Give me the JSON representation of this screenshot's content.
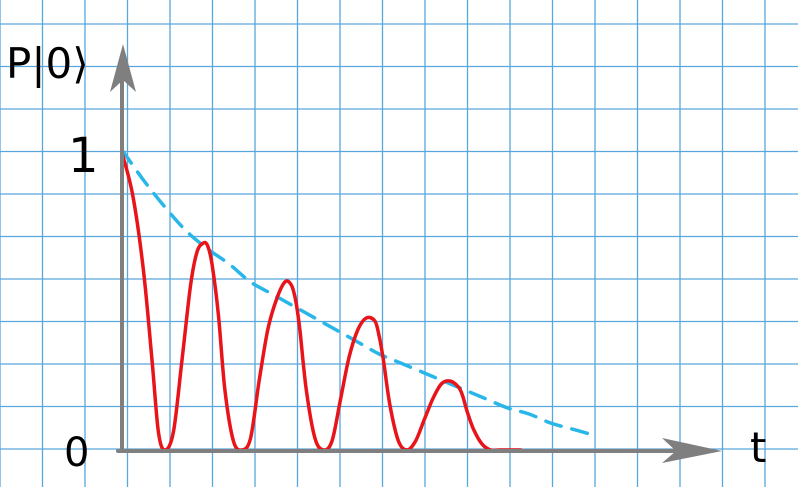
{
  "colors": {
    "background": "#ffffff",
    "grid": "#59a6dd",
    "axis": "#7f7f7f",
    "oscillation": "#e8141a",
    "envelope": "#29b6e8",
    "text": "#000000"
  },
  "chart_data": {
    "type": "line",
    "title": "",
    "ylabel": "P|0⟩",
    "xlabel": "t",
    "yticks": [
      {
        "value": 0,
        "label": "0"
      },
      {
        "value": 1,
        "label": "1"
      }
    ],
    "xlim": [
      0,
      14
    ],
    "ylim": [
      0,
      1.0
    ],
    "grid": true,
    "legend": "none",
    "series": [
      {
        "style": "solid",
        "color": "#e8141a",
        "x": [
          0,
          0.25,
          0.5,
          0.7,
          0.85,
          1.0,
          1.2,
          1.4,
          1.6,
          1.75,
          1.9,
          2.0,
          2.1,
          2.25,
          2.4,
          2.6,
          2.8,
          3.0,
          3.2,
          3.4,
          3.6,
          3.8,
          3.95,
          4.05,
          4.15,
          4.3,
          4.5,
          4.7,
          4.9,
          5.1,
          5.3,
          5.5,
          5.7,
          5.9,
          6.0,
          6.1,
          6.25,
          6.45,
          6.65,
          6.85,
          7.05,
          7.25,
          7.45,
          7.65,
          7.85,
          7.95,
          8.05,
          8.2,
          8.4,
          8.6,
          8.8,
          9.0,
          9.3
        ],
        "y": [
          0.99,
          0.85,
          0.6,
          0.3,
          0.06,
          0.0,
          0.06,
          0.3,
          0.55,
          0.66,
          0.69,
          0.68,
          0.62,
          0.45,
          0.2,
          0.03,
          0.0,
          0.04,
          0.23,
          0.4,
          0.5,
          0.56,
          0.55,
          0.5,
          0.4,
          0.2,
          0.04,
          0.0,
          0.03,
          0.17,
          0.31,
          0.4,
          0.44,
          0.43,
          0.38,
          0.3,
          0.15,
          0.03,
          0.0,
          0.03,
          0.1,
          0.17,
          0.22,
          0.23,
          0.21,
          0.18,
          0.13,
          0.07,
          0.02,
          0.0,
          0.0,
          0.0,
          0.0
        ]
      },
      {
        "style": "dashed",
        "color": "#29b6e8",
        "x": [
          0,
          0.5,
          1.0,
          1.5,
          2.0,
          2.5,
          3.0,
          3.5,
          4.0,
          4.5,
          5.0,
          5.5,
          6.0,
          6.5,
          7.0,
          7.5,
          8.0,
          8.5,
          9.0,
          9.5,
          10.0,
          10.5,
          11.0
        ],
        "y": [
          1.0,
          0.9,
          0.81,
          0.73,
          0.67,
          0.62,
          0.56,
          0.52,
          0.48,
          0.44,
          0.4,
          0.36,
          0.32,
          0.29,
          0.26,
          0.23,
          0.2,
          0.17,
          0.14,
          0.12,
          0.09,
          0.07,
          0.05
        ]
      }
    ]
  }
}
